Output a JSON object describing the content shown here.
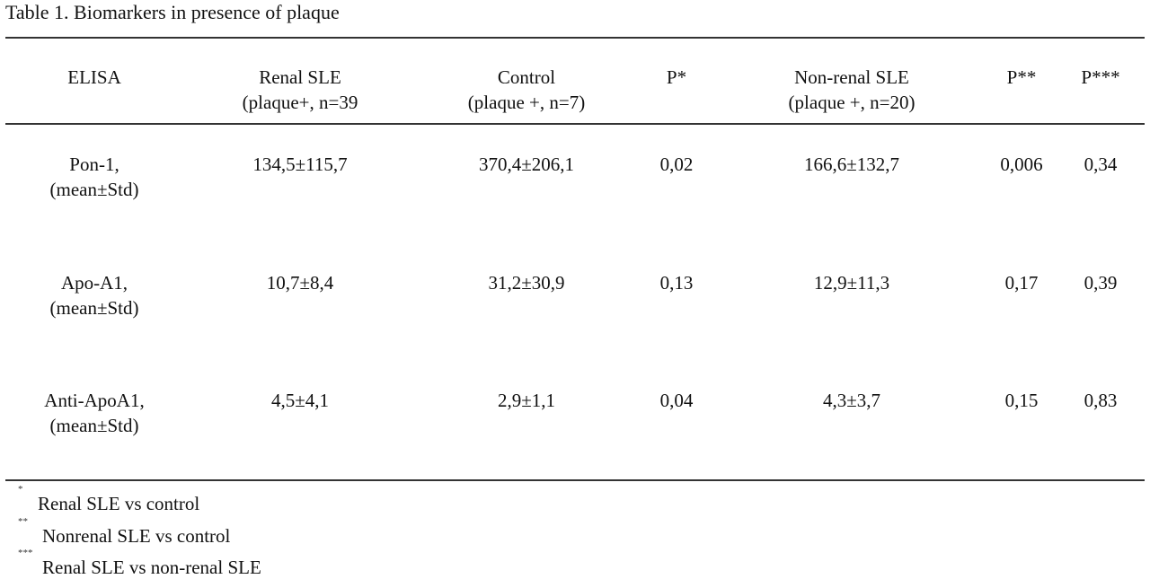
{
  "caption": "Table 1. Biomarkers in presence of plaque",
  "header": {
    "elisa": [
      "ELISA"
    ],
    "renal_sle": [
      "Renal SLE",
      "(plaque+, n=39"
    ],
    "control": [
      "Control",
      "(plaque +, n=7)"
    ],
    "p1": [
      "P*"
    ],
    "nonrenal_sle": [
      "Non-renal SLE",
      "(plaque +, n=20)"
    ],
    "p2": [
      "P**"
    ],
    "p3": [
      "P***"
    ]
  },
  "rows": [
    {
      "label": [
        "Pon-1,",
        "(mean±Std)"
      ],
      "renal_sle": "134,5±115,7",
      "control": "370,4±206,1",
      "p1": "0,02",
      "nonrenal_sle": "166,6±132,7",
      "p2": "0,006",
      "p3": "0,34"
    },
    {
      "label": [
        "Apo-A1,",
        "(mean±Std)"
      ],
      "renal_sle": "10,7±8,4",
      "control": "31,2±30,9",
      "p1": "0,13",
      "nonrenal_sle": "12,9±11,3",
      "p2": "0,17",
      "p3": "0,39"
    },
    {
      "label": [
        "Anti-ApoA1,",
        "(mean±Std)"
      ],
      "renal_sle": "4,5±4,1",
      "control": "2,9±1,1",
      "p1": "0,04",
      "nonrenal_sle": "4,3±3,7",
      "p2": "0,15",
      "p3": "0,83"
    }
  ],
  "footnotes": [
    {
      "mark": "*",
      "text": "Renal SLE vs control"
    },
    {
      "mark": "**",
      "text": "Nonrenal SLE vs control"
    },
    {
      "mark": "***",
      "text": "Renal SLE vs non-renal SLE"
    }
  ]
}
